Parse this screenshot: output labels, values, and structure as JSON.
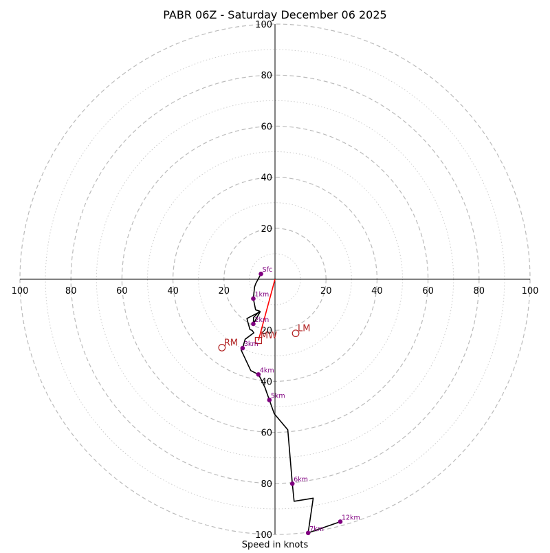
{
  "chart_data": {
    "type": "hodograph",
    "title": "PABR 06Z - Saturday December 06 2025",
    "xlabel": "Speed in knots",
    "range": [
      -100,
      100
    ],
    "ring_major_step": 20,
    "ring_minor_step": 10,
    "x_tick_labels": [
      "100",
      "80",
      "60",
      "40",
      "20",
      "20",
      "40",
      "60",
      "80",
      "100"
    ],
    "x_tick_values": [
      -100,
      -80,
      -60,
      -40,
      -20,
      20,
      40,
      60,
      80,
      100
    ],
    "y_tick_labels": [
      "100",
      "80",
      "60",
      "40",
      "20",
      "20",
      "40",
      "60",
      "80",
      "100"
    ],
    "y_tick_values": [
      100,
      80,
      60,
      40,
      20,
      -20,
      -40,
      -60,
      -80,
      -100
    ],
    "hodograph_line": [
      [
        -5.5,
        2.1
      ],
      [
        -7.5,
        -1.6
      ],
      [
        -8.0,
        -3.0
      ],
      [
        -8.5,
        -7.6
      ],
      [
        -7.6,
        -12.0
      ],
      [
        -6.0,
        -12.5
      ],
      [
        -8.4,
        -15.0
      ],
      [
        -8.5,
        -17.5
      ],
      [
        -5.8,
        -12.7
      ],
      [
        -11.0,
        -15.4
      ],
      [
        -10.8,
        -16.2
      ],
      [
        -9.8,
        -19.7
      ],
      [
        -9.0,
        -20.0
      ],
      [
        -8.3,
        -21.0
      ],
      [
        -11.7,
        -23.5
      ],
      [
        -12.7,
        -27.0
      ],
      [
        -13.3,
        -27.7
      ],
      [
        -9.5,
        -35.8
      ],
      [
        -6.5,
        -37.3
      ],
      [
        -5.6,
        -38.9
      ],
      [
        -3.9,
        -42.5
      ],
      [
        -2.2,
        -47.3
      ],
      [
        -0.3,
        -52.7
      ],
      [
        5.0,
        -59.0
      ],
      [
        6.8,
        -80.1
      ],
      [
        7.5,
        -87.0
      ],
      [
        15.0,
        -85.8
      ],
      [
        13.0,
        -99.4
      ],
      [
        25.6,
        -95.0
      ]
    ],
    "height_markers": [
      {
        "label": "Sfc",
        "u": -5.5,
        "v": 2.1
      },
      {
        "label": "1km",
        "u": -8.5,
        "v": -7.6
      },
      {
        "label": "2km",
        "u": -8.5,
        "v": -17.5
      },
      {
        "label": "3km",
        "u": -12.7,
        "v": -27.0
      },
      {
        "label": "4km",
        "u": -6.5,
        "v": -37.3
      },
      {
        "label": "5km",
        "u": -2.2,
        "v": -47.3
      },
      {
        "label": "6km",
        "u": 6.8,
        "v": -80.1
      },
      {
        "label": "7km",
        "u": 13.0,
        "v": -99.4
      },
      {
        "label": "12km",
        "u": 25.6,
        "v": -95.0
      }
    ],
    "storm_motion": [
      {
        "label": "RM",
        "u": -20.8,
        "v": -26.8,
        "marker": "circle"
      },
      {
        "label": "LM",
        "u": 8.1,
        "v": -21.2,
        "marker": "circle"
      },
      {
        "label": "MW",
        "u": -6.5,
        "v": -24.0,
        "marker": "square"
      }
    ],
    "shear_vector": {
      "from": [
        0,
        0
      ],
      "to": [
        -6.5,
        -24.0
      ]
    },
    "colors": {
      "hodo_line": "#000000",
      "markers": "#800080",
      "storm_motion": "#b22222",
      "shear_vector": "#ff0000",
      "major_rings": "#bbbbbb",
      "minor_rings": "#cccccc",
      "axes": "#000000"
    }
  }
}
